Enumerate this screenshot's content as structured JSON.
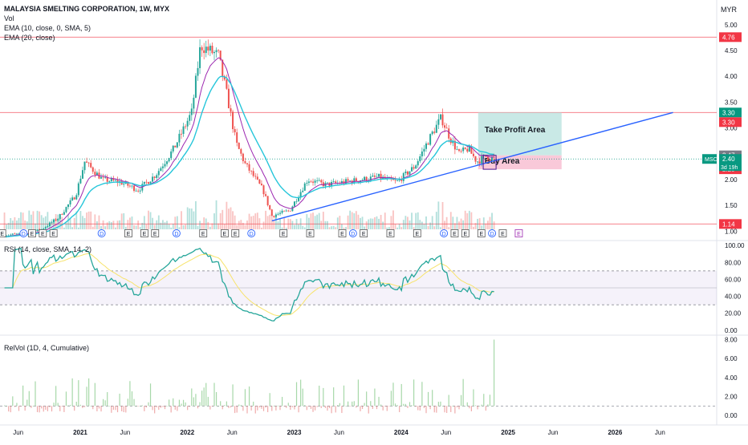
{
  "header": {
    "title": "MALAYSIA SMELTING CORPORATION, 1W, MYX",
    "currency": "MYR",
    "indicators": [
      "Vol",
      "EMA (10, close, 0, SMA, 5)",
      "EMA (20, close)"
    ]
  },
  "rsi_label": "RSI (14, close, SMA, 14, 2)",
  "relvol_label": "RelVol (1D, 4, Cumulative)",
  "annotations": {
    "take_profit": "Take Profit Area",
    "buy": "Buy Area",
    "symbol_badge": "MSC",
    "countdown": "3d 19h"
  },
  "colors": {
    "up": "#26a69a",
    "down": "#ef5350",
    "ema10": "#9c27b0",
    "ema20": "#26c6da",
    "trendline": "#2962ff",
    "hline": "#f23645",
    "rsi_line": "#26a69a",
    "rsi_ma": "#f7e36b",
    "take_profit_fill": "#b2dfdb",
    "buy_fill": "#f8bbd0"
  },
  "chart_data": [
    {
      "type": "candlestick",
      "pane": "price",
      "x_tick_labels": [
        "Jun",
        "2021",
        "Jun",
        "2022",
        "Jun",
        "2023",
        "Jun",
        "2024",
        "Jun",
        "2025",
        "Jun",
        "2026",
        "Jun"
      ],
      "y_tick_labels": [
        "1.00",
        "1.50",
        "2.00",
        "2.50",
        "3.00",
        "3.50",
        "4.00",
        "4.50",
        "5.00"
      ],
      "ylim": [
        0.85,
        5.2
      ],
      "price_labels": [
        {
          "value": 4.76,
          "label": "4.76",
          "color": "#f23645"
        },
        {
          "value": 3.3,
          "label": "3.30",
          "color": "#089981"
        },
        {
          "value": 3.3,
          "label": "3.30",
          "color": "#f23645"
        },
        {
          "value": 2.47,
          "label": "2.47",
          "color": "#787b86"
        },
        {
          "value": 2.4,
          "label": "2.40",
          "color": "#089981"
        },
        {
          "value": 2.2,
          "label": "2.20",
          "color": "#f23645"
        },
        {
          "value": 1.14,
          "label": "1.14",
          "color": "#f23645"
        }
      ],
      "horizontal_lines": [
        4.76,
        3.3,
        1.14
      ],
      "current_price": 2.4,
      "take_profit_zone": [
        2.47,
        3.3
      ],
      "buy_zone": [
        2.2,
        2.47
      ],
      "trendline": {
        "from": [
          "2022-10",
          1.2
        ],
        "to": [
          "2026-07",
          3.3
        ]
      },
      "close_series": [
        [
          "2020-04",
          0.92
        ],
        [
          "2020-06",
          0.95
        ],
        [
          "2020-08",
          1.02
        ],
        [
          "2020-10",
          1.25
        ],
        [
          "2020-12",
          1.7
        ],
        [
          "2021-01",
          2.35
        ],
        [
          "2021-03",
          2.0
        ],
        [
          "2021-05",
          1.95
        ],
        [
          "2021-07",
          1.8
        ],
        [
          "2021-09",
          2.1
        ],
        [
          "2021-11",
          2.6
        ],
        [
          "2022-01",
          3.3
        ],
        [
          "2022-02",
          4.6
        ],
        [
          "2022-03",
          4.5
        ],
        [
          "2022-04",
          4.4
        ],
        [
          "2022-05",
          3.6
        ],
        [
          "2022-06",
          2.7
        ],
        [
          "2022-07",
          2.3
        ],
        [
          "2022-09",
          1.8
        ],
        [
          "2022-10",
          1.3
        ],
        [
          "2022-12",
          1.4
        ],
        [
          "2023-02",
          2.0
        ],
        [
          "2023-04",
          1.9
        ],
        [
          "2023-06",
          1.95
        ],
        [
          "2023-08",
          2.0
        ],
        [
          "2023-10",
          2.05
        ],
        [
          "2023-12",
          1.95
        ],
        [
          "2024-02",
          2.25
        ],
        [
          "2024-04",
          2.9
        ],
        [
          "2024-05",
          3.2
        ],
        [
          "2024-06",
          2.8
        ],
        [
          "2024-07",
          2.5
        ],
        [
          "2024-08",
          2.6
        ],
        [
          "2024-09",
          2.35
        ],
        [
          "2024-10",
          2.45
        ],
        [
          "2024-11",
          2.4
        ]
      ]
    },
    {
      "type": "line",
      "pane": "rsi",
      "y_tick_labels": [
        "0.00",
        "20.00",
        "40.00",
        "60.00",
        "80.00",
        "100.00"
      ],
      "ylim": [
        -4,
        104
      ],
      "band": [
        30,
        70
      ],
      "midline": 50
    },
    {
      "type": "bar",
      "pane": "relvol",
      "y_tick_labels": [
        "0.00",
        "2.00",
        "4.00",
        "6.00",
        "8.00"
      ],
      "ylim": [
        -0.5,
        8.3
      ],
      "baseline": 1
    }
  ]
}
